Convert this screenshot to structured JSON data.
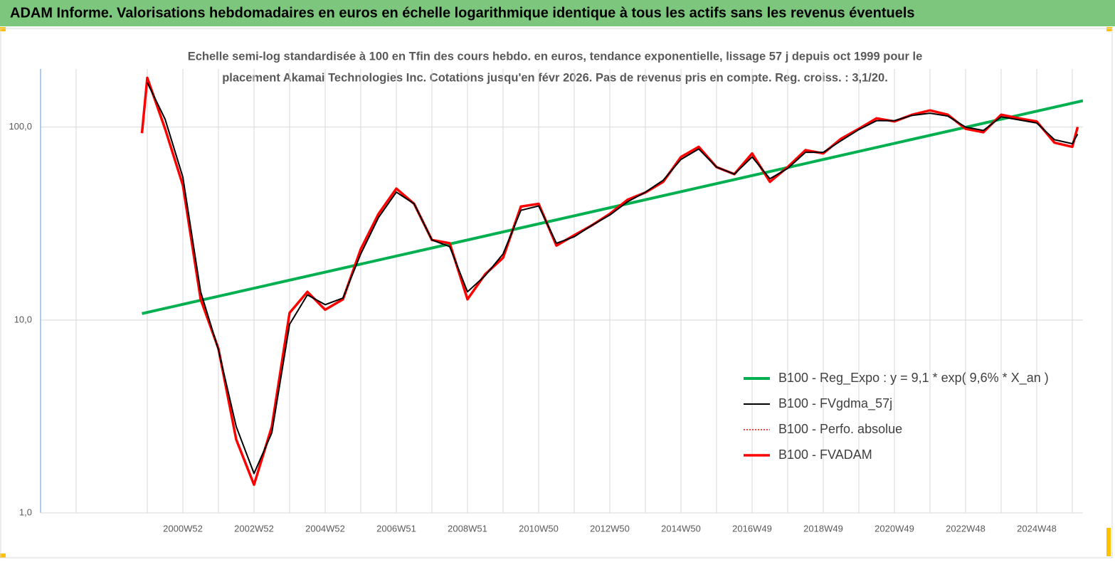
{
  "header": {
    "title": "ADAM Informe. Valorisations hebdomadaires en euros en échelle logarithmique identique à tous les actifs sans les revenus éventuels"
  },
  "chart_data": {
    "type": "line",
    "subtitle": [
      "Echelle semi-log standardisée à 100 en Tfin des cours hebdo. en euros, tendance exponentielle, lissage 57 j depuis oct 1999 pour le",
      "placement Akamai Technologies Inc. Cotations jusqu'en févr 2026. Pas de revenus pris en compte. Reg. croiss. : 3,1/20."
    ],
    "log_scale": true,
    "grid": true,
    "legend_position": "right",
    "xlim": [
      1997,
      2026.3
    ],
    "ylim": [
      1,
      200
    ],
    "yticks": [
      {
        "value": 1,
        "label": "1,0"
      },
      {
        "value": 10,
        "label": "10,0"
      },
      {
        "value": 100,
        "label": "100,0"
      }
    ],
    "xticks": [
      {
        "value": 2001,
        "label": "2000W52"
      },
      {
        "value": 2003,
        "label": "2002W52"
      },
      {
        "value": 2005,
        "label": "2004W52"
      },
      {
        "value": 2007,
        "label": "2006W51"
      },
      {
        "value": 2009,
        "label": "2008W51"
      },
      {
        "value": 2011,
        "label": "2010W50"
      },
      {
        "value": 2013,
        "label": "2012W50"
      },
      {
        "value": 2015,
        "label": "2014W50"
      },
      {
        "value": 2017,
        "label": "2016W49"
      },
      {
        "value": 2019,
        "label": "2018W49"
      },
      {
        "value": 2021,
        "label": "2020W49"
      },
      {
        "value": 2023,
        "label": "2022W48"
      },
      {
        "value": 2025,
        "label": "2024W48"
      }
    ],
    "x_minor_ticks": [
      1998,
      2000,
      2002,
      2004,
      2006,
      2008,
      2010,
      2012,
      2014,
      2016,
      2018,
      2020,
      2022,
      2024,
      2026
    ],
    "x": [
      1999.85,
      2000,
      2000.5,
      2001,
      2001.5,
      2002,
      2002.5,
      2003,
      2003.5,
      2004,
      2004.5,
      2005,
      2005.5,
      2006,
      2006.5,
      2007,
      2007.5,
      2008,
      2008.5,
      2009,
      2009.5,
      2010,
      2010.5,
      2011,
      2011.5,
      2012,
      2012.5,
      2013,
      2013.5,
      2014,
      2014.5,
      2015,
      2015.5,
      2016,
      2016.5,
      2017,
      2017.5,
      2018,
      2018.5,
      2019,
      2019.5,
      2020,
      2020.5,
      2021,
      2021.5,
      2022,
      2022.5,
      2023,
      2023.5,
      2024,
      2024.5,
      2025,
      2025.5,
      2026,
      2026.15
    ],
    "series": [
      {
        "name": "B100 - Reg_Expo : y = 9,1 * exp( 9,6% *  X_an )",
        "color": "#00b050",
        "style": "solid",
        "width": 4,
        "x": [
          1999.85,
          2026.3
        ],
        "values": [
          10.8,
          137
        ]
      },
      {
        "name": "B100 - FVgdma_57j",
        "color": "#000000",
        "style": "solid",
        "width": 2,
        "values": [
          null,
          170,
          110,
          55,
          14,
          7,
          2.8,
          1.6,
          2.6,
          9.5,
          13.5,
          12,
          13,
          22,
          34,
          46,
          40,
          26,
          24,
          14,
          17,
          22,
          37,
          39,
          25,
          27,
          31,
          35,
          41,
          46,
          53,
          68,
          77,
          62,
          57,
          70,
          54,
          61,
          74,
          74,
          85,
          97,
          108,
          108,
          115,
          118,
          114,
          100,
          96,
          113,
          109,
          105,
          86,
          82,
          92
        ]
      },
      {
        "name": "B100 - Perfo. absolue",
        "color": "#ff0000",
        "style": "dotted",
        "width": 1.5,
        "values": [
          93,
          180,
          98,
          50,
          12.8,
          7.1,
          2.4,
          1.4,
          2.8,
          10.9,
          14,
          11.3,
          12.8,
          23.3,
          35.5,
          48,
          40,
          26,
          25,
          12.8,
          17.3,
          21,
          38.7,
          40,
          24.3,
          27.5,
          31,
          35.5,
          42,
          45.8,
          52,
          70,
          79,
          62,
          57,
          73,
          52,
          62,
          76,
          73,
          87,
          98,
          111,
          107,
          116,
          122,
          116,
          98,
          94,
          116,
          111,
          107,
          83,
          79,
          100
        ]
      },
      {
        "name": "B100 - FVADAM",
        "color": "#ff0000",
        "style": "solid",
        "width": 3.5,
        "values": [
          93,
          180,
          98,
          50,
          12.8,
          7.1,
          2.4,
          1.4,
          2.8,
          10.9,
          14,
          11.3,
          12.8,
          23.3,
          35.5,
          48,
          40,
          26,
          25,
          12.8,
          17.3,
          21,
          38.7,
          40,
          24.3,
          27.5,
          31,
          35.5,
          42,
          45.8,
          52,
          70,
          79,
          62,
          57,
          73,
          52,
          62,
          76,
          73,
          87,
          98,
          111,
          107,
          116,
          122,
          116,
          98,
          94,
          116,
          111,
          107,
          83,
          79,
          100
        ]
      }
    ]
  }
}
